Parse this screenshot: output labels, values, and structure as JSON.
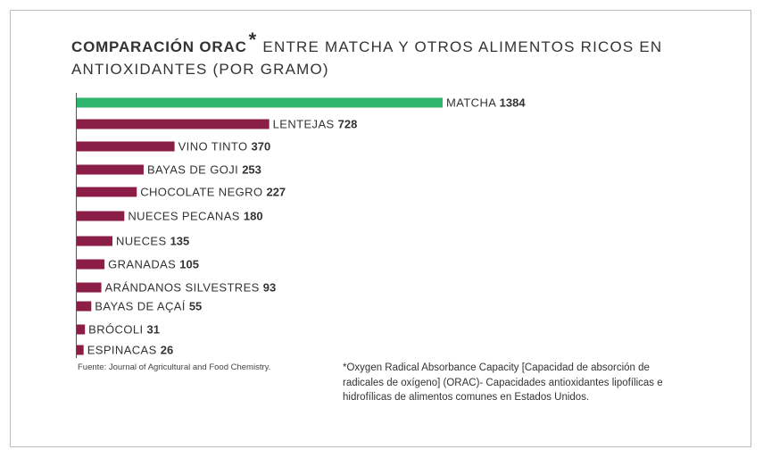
{
  "chart_data": {
    "type": "bar",
    "orientation": "horizontal",
    "title_bold": "COMPARACIÓN ORAC",
    "title_asterisk": "*",
    "title_rest": "ENTRE MATCHA Y OTROS ALIMENTOS RICOS EN ANTIOXIDANTES (POR GRAMO)",
    "categories": [
      "MATCHA",
      "LENTEJAS",
      "VINO TINTO",
      "BAYAS DE GOJI",
      "CHOCOLATE NEGRO",
      "NUECES PECANAS",
      "NUECES",
      "GRANADAS",
      "ARÁNDANOS SILVESTRES",
      "BAYAS DE AÇAÍ",
      "BRÓCOLI",
      "ESPINACAS"
    ],
    "values": [
      1384,
      728,
      370,
      253,
      227,
      180,
      135,
      105,
      93,
      55,
      31,
      26
    ],
    "colors": [
      "#2db56e",
      "#8b1e46",
      "#8b1e46",
      "#8b1e46",
      "#8b1e46",
      "#8b1e46",
      "#8b1e46",
      "#8b1e46",
      "#8b1e46",
      "#8b1e46",
      "#8b1e46",
      "#8b1e46"
    ],
    "xlim": [
      0,
      1384
    ],
    "source": "Fuente: Journal of Agricultural and Food Chemistry.",
    "footnote": "*Oxygen Radical Absorbance Capacity [Capacidad de absorción de radicales de oxígeno] (ORAC)- Capacidades antioxidantes lipofílicas e hidrofílicas de alimentos comunes en Estados Unidos."
  }
}
